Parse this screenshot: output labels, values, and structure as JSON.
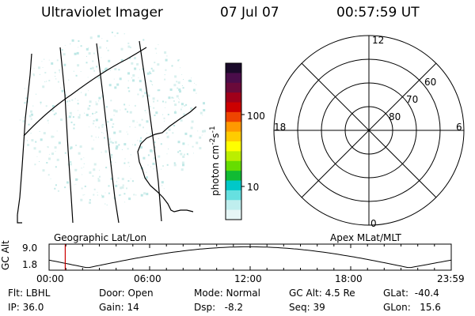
{
  "header": {
    "title": "Ultraviolet Imager",
    "date": "07 Jul 07",
    "time": "00:57:59 UT"
  },
  "colorbar": {
    "unit_main": "photon cm",
    "unit_exp1": "-2",
    "unit_mid": "s",
    "unit_exp2": "-1",
    "tick_100": "100",
    "tick_10": "10",
    "colors": [
      "#1a0a2a",
      "#4a0d4a",
      "#6a0a3a",
      "#a0001a",
      "#cc0000",
      "#ee4400",
      "#ff9900",
      "#ffcc00",
      "#ffff00",
      "#bbee00",
      "#66dd00",
      "#11bb33",
      "#00c8c8",
      "#66e0e0",
      "#bfeeee",
      "#e6f6f6"
    ]
  },
  "polar": {
    "mlt_12": "12",
    "mlt_18": "18",
    "mlt_6": "6",
    "mlt_0": "0",
    "lat_60": "60",
    "lat_70": "70",
    "lat_80": "80"
  },
  "timeline": {
    "ylabel": "GC Alt",
    "ytick_top": "9.0",
    "ytick_bottom": "1.8",
    "left_label": "Geographic Lat/Lon",
    "right_label": "Apex MLat/MLT",
    "ticks": [
      "00:00",
      "06:00",
      "12:00",
      "18:00",
      "23:59"
    ],
    "marker_color": "#cc0000",
    "marker_time_hours": 0.966
  },
  "info": {
    "flt": "Flt: LBHL",
    "ip": "IP: 36.0",
    "door": "Door: Open",
    "gain": "Gain: 14",
    "mode": "Mode: Normal",
    "dsp": "Dsp:",
    "dsp_value": "-8.2",
    "gcalt": "GC Alt: 4.5 Re",
    "seq": "Seq: 39",
    "glat": "GLat:",
    "glat_value": "-40.4",
    "glon": "GLon:",
    "glon_value": "15.6"
  }
}
